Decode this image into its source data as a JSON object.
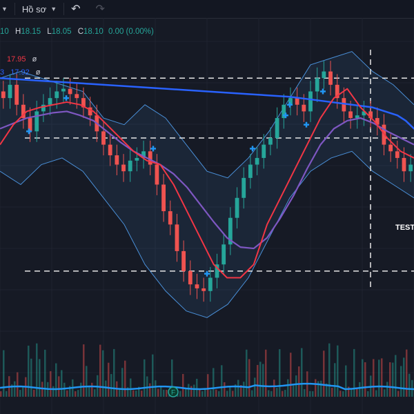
{
  "toolbar": {
    "profile_label": "Hồ sơ",
    "undo_icon": "undo-icon",
    "redo_icon": "redo-icon"
  },
  "ohlc": {
    "open_partial": "10",
    "high_key": "H",
    "high": "18.15",
    "low_key": "L",
    "low": "18.05",
    "close_key": "C",
    "close": "18.10",
    "change": "0.00 (0.00%)"
  },
  "ma_legend": [
    {
      "value": "17.95",
      "color": "#f23645",
      "eye": "ø"
    },
    {
      "value": "17.92",
      "color": "#2962ff",
      "prefix": "3",
      "eye": "ø"
    }
  ],
  "annotations": {
    "test_label": "TEST"
  },
  "colors": {
    "background": "#161a25",
    "candle_up": "#26a69a",
    "candle_down": "#ef5350",
    "ma_short": "#f23645",
    "ma_mid": "#7e57c2",
    "ma_long": "#2962ff",
    "bollinger": "#4a90d9",
    "volume_ma": "#2196f3",
    "marker": "#2196f3"
  },
  "chart_data": {
    "type": "candlestick",
    "x_range": [
      0,
      100
    ],
    "y_range": [
      16.15,
      18.25
    ],
    "close": [
      17.85,
      17.95,
      17.8,
      17.7,
      17.6,
      17.75,
      17.8,
      17.85,
      17.9,
      17.92,
      17.88,
      17.85,
      17.78,
      17.72,
      17.6,
      17.5,
      17.42,
      17.35,
      17.3,
      17.38,
      17.4,
      17.45,
      17.35,
      17.2,
      17.0,
      16.9,
      16.7,
      16.55,
      16.45,
      16.42,
      16.4,
      16.5,
      16.6,
      16.75,
      16.95,
      17.1,
      17.25,
      17.35,
      17.4,
      17.5,
      17.55,
      17.7,
      17.8,
      17.85,
      17.8,
      17.75,
      17.9,
      18.0,
      18.05,
      17.95,
      17.85,
      17.75,
      17.7,
      17.72,
      17.75,
      17.7,
      17.65,
      17.5,
      17.45,
      17.4,
      17.3,
      17.35
    ],
    "ma_short": [
      17.5,
      17.65,
      17.75,
      17.78,
      17.8,
      17.82,
      17.8,
      17.75,
      17.65,
      17.55,
      17.45,
      17.38,
      17.35,
      17.2,
      17.0,
      16.8,
      16.6,
      16.5,
      16.5,
      16.6,
      16.9,
      17.1,
      17.3,
      17.5,
      17.7,
      17.85,
      17.92,
      17.78,
      17.68,
      17.55,
      17.45,
      17.4
    ],
    "ma_mid": [
      17.62,
      17.66,
      17.7,
      17.72,
      17.74,
      17.75,
      17.72,
      17.68,
      17.6,
      17.52,
      17.45,
      17.4,
      17.35,
      17.28,
      17.18,
      17.05,
      16.92,
      16.8,
      16.73,
      16.72,
      16.8,
      16.95,
      17.12,
      17.32,
      17.5,
      17.62,
      17.68,
      17.7,
      17.66,
      17.6,
      17.55,
      17.5
    ],
    "ma_long": [
      18.0,
      17.98,
      17.96,
      17.94,
      17.92,
      17.9,
      17.88,
      17.86,
      17.84,
      17.82,
      17.8,
      17.78,
      17.75,
      17.72,
      17.68,
      17.62,
      17.58,
      17.55
    ],
    "ma_long_x": [
      0,
      10,
      20,
      30,
      40,
      50,
      60,
      70,
      75,
      80,
      85,
      90,
      93,
      96,
      98,
      100,
      105,
      110
    ],
    "bollinger_upper": [
      18.0,
      18.05,
      18.0,
      17.95,
      17.9,
      17.7,
      17.65,
      17.8,
      17.7,
      17.5,
      17.3,
      17.25,
      17.4,
      17.6,
      17.85,
      18.1,
      18.15,
      18.2,
      18.05,
      17.95,
      17.8
    ],
    "bollinger_lower": [
      17.3,
      17.2,
      17.35,
      17.4,
      17.3,
      17.1,
      16.9,
      16.6,
      16.4,
      16.25,
      16.2,
      16.3,
      16.5,
      16.8,
      17.1,
      17.3,
      17.4,
      17.45,
      17.3,
      17.2,
      17.1
    ],
    "levels": [
      18.0,
      17.55,
      16.55
    ],
    "markers": [
      {
        "x": 7,
        "y": 17.6
      },
      {
        "x": 16,
        "y": 17.85
      },
      {
        "x": 37,
        "y": 17.47
      },
      {
        "x": 50,
        "y": 16.53
      },
      {
        "x": 61,
        "y": 17.47
      },
      {
        "x": 69,
        "y": 17.72
      },
      {
        "x": 70,
        "y": 17.8
      },
      {
        "x": 74,
        "y": 17.65
      },
      {
        "x": 78,
        "y": 17.9
      }
    ],
    "divider_x": 89.5,
    "volume_marker_label": "F"
  }
}
